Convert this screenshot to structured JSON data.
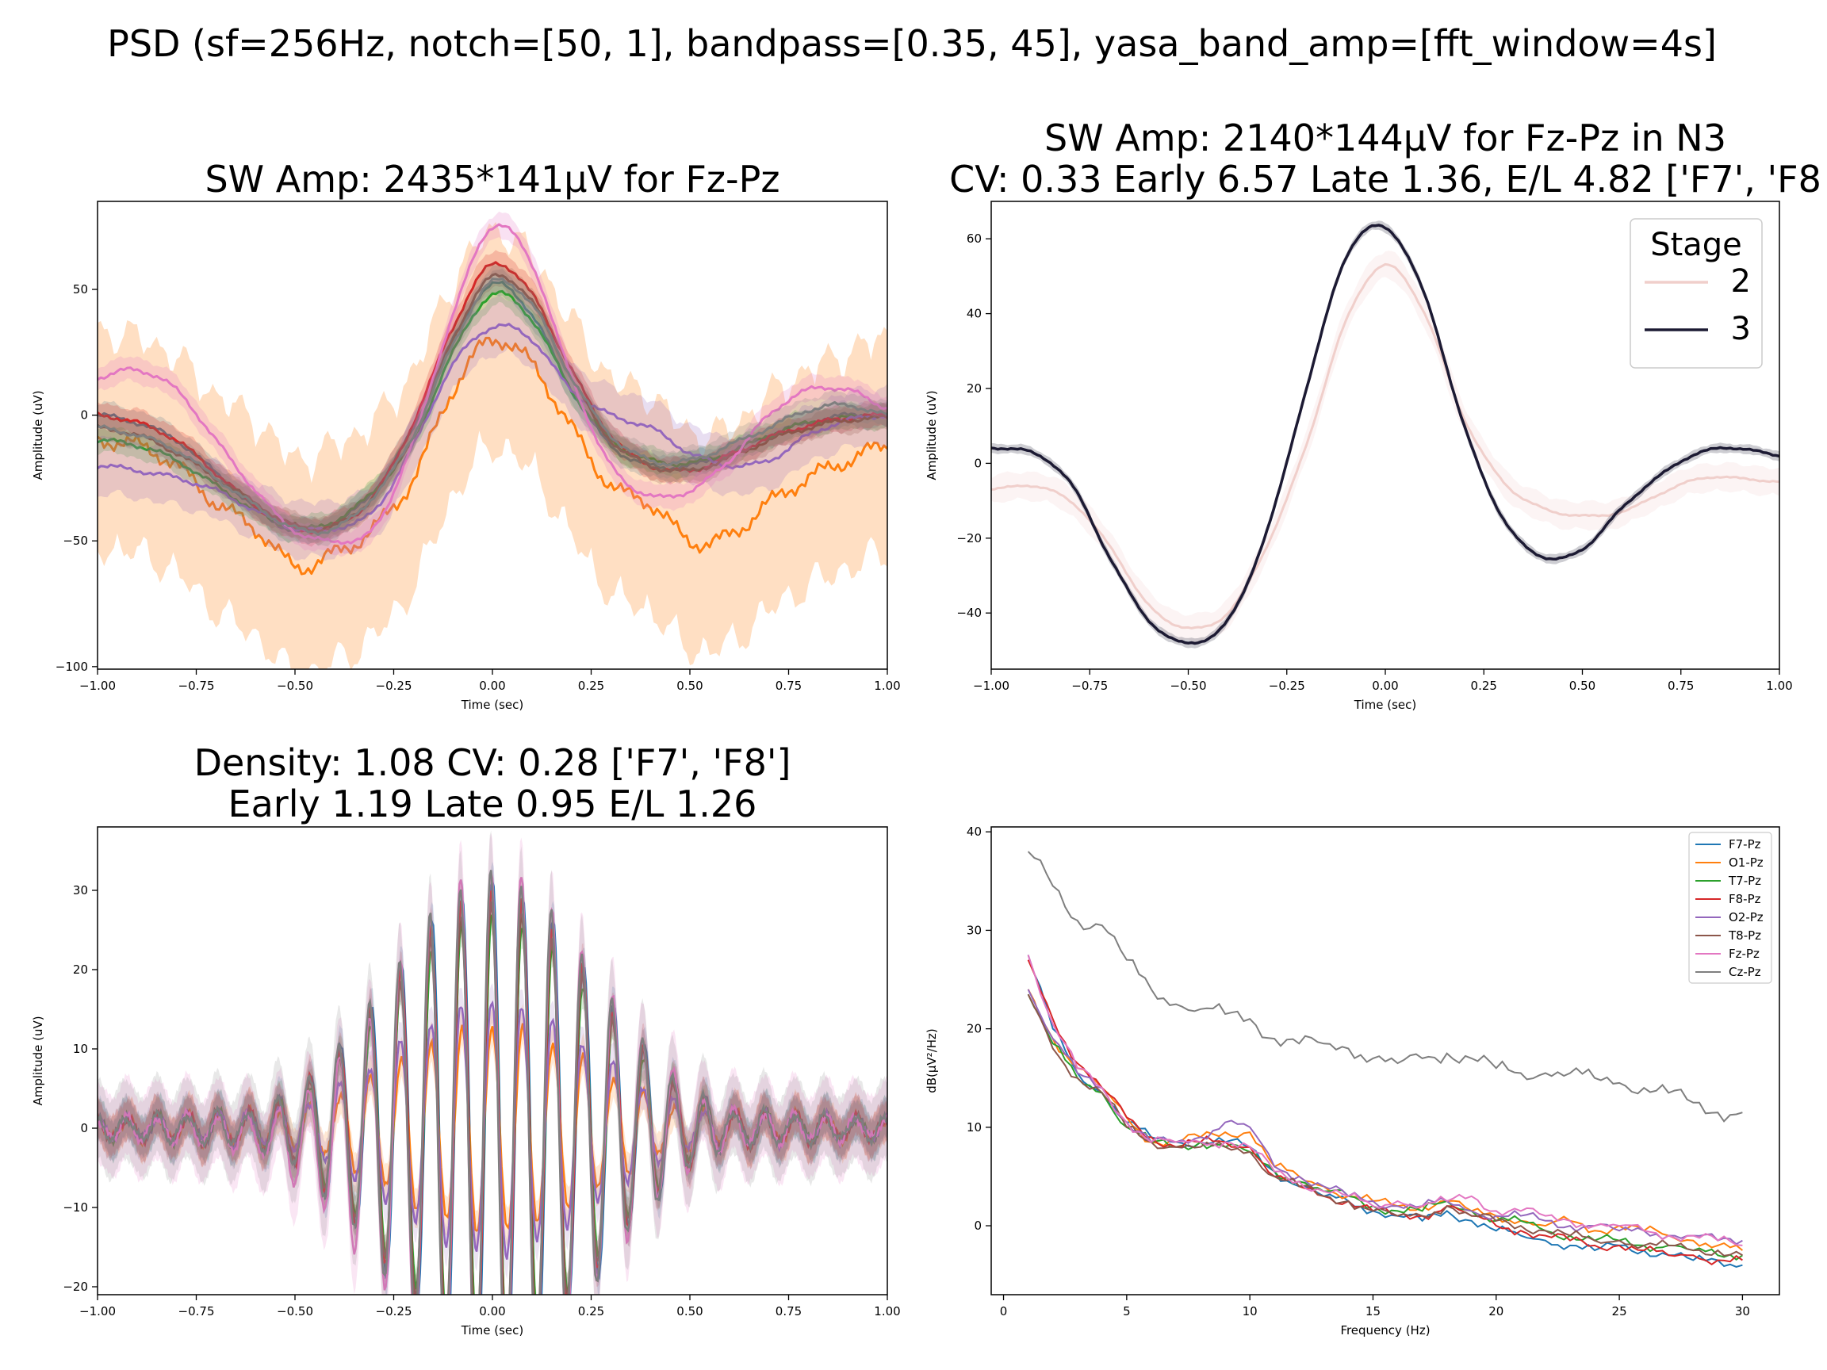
{
  "figure": {
    "suptitle": "PSD (sf=256Hz, notch=[50, 1], bandpass=[0.35, 45], yasa_band_amp=[fft_window=4s]"
  },
  "chart_data": [
    {
      "id": "sw_all",
      "type": "line",
      "title_lines": [
        "SW Amp: 2435*141µV for Fz-Pz"
      ],
      "xlabel": "Time (sec)",
      "ylabel": "Amplitude (uV)",
      "xlim": [
        -1.0,
        1.0
      ],
      "ylim": [
        -101,
        85
      ],
      "xticks": [
        -1.0,
        -0.75,
        -0.5,
        -0.25,
        0.0,
        0.25,
        0.5,
        0.75,
        1.0
      ],
      "xtick_labels": [
        "−1.00",
        "−0.75",
        "−0.50",
        "−0.25",
        "0.00",
        "0.25",
        "0.50",
        "0.75",
        "1.00"
      ],
      "yticks": [
        -100,
        -50,
        0,
        50
      ],
      "ytick_labels": [
        "−100",
        "−50",
        "0",
        "50"
      ],
      "grid": false,
      "x": [
        -1.0,
        -0.9,
        -0.8,
        -0.7,
        -0.6,
        -0.5,
        -0.4,
        -0.3,
        -0.2,
        -0.1,
        0.0,
        0.1,
        0.2,
        0.3,
        0.4,
        0.5,
        0.6,
        0.7,
        0.8,
        0.9,
        1.0
      ],
      "series": [
        {
          "color": "#1f77b4",
          "band": 4,
          "values": [
            0,
            -3,
            -10,
            -23,
            -37,
            -46,
            -43,
            -30,
            -5,
            30,
            52,
            40,
            10,
            -12,
            -20,
            -20,
            -15,
            -8,
            -3,
            0,
            0
          ]
        },
        {
          "color": "#ff7f0e",
          "band": 35,
          "values": [
            -10,
            -12,
            -20,
            -35,
            -45,
            -60,
            -55,
            -45,
            -25,
            10,
            30,
            20,
            -5,
            -28,
            -35,
            -50,
            -48,
            -35,
            -25,
            -18,
            -12
          ]
        },
        {
          "color": "#2ca02c",
          "band": 4,
          "values": [
            -10,
            -12,
            -18,
            -28,
            -38,
            -45,
            -42,
            -30,
            -10,
            25,
            48,
            38,
            10,
            -10,
            -18,
            -19,
            -15,
            -8,
            -3,
            -1,
            0
          ]
        },
        {
          "color": "#d62728",
          "band": 4,
          "values": [
            0,
            -3,
            -10,
            -23,
            -36,
            -45,
            -44,
            -32,
            -3,
            35,
            60,
            48,
            18,
            -8,
            -20,
            -22,
            -16,
            -9,
            -4,
            -1,
            0
          ]
        },
        {
          "color": "#9467bd",
          "band": 9,
          "values": [
            -20,
            -22,
            -25,
            -30,
            -38,
            -45,
            -45,
            -38,
            -12,
            20,
            35,
            30,
            10,
            0,
            -5,
            -15,
            -20,
            -18,
            -8,
            -2,
            0
          ]
        },
        {
          "color": "#8c564b",
          "band": 4,
          "values": [
            -5,
            -8,
            -15,
            -25,
            -35,
            -44,
            -44,
            -32,
            -8,
            30,
            55,
            45,
            15,
            -10,
            -20,
            -22,
            -17,
            -10,
            -5,
            -2,
            -1
          ]
        },
        {
          "color": "#e377c2",
          "band": 4,
          "values": [
            15,
            18,
            10,
            -10,
            -30,
            -46,
            -50,
            -45,
            -10,
            40,
            75,
            60,
            15,
            -20,
            -32,
            -30,
            -18,
            0,
            10,
            10,
            3
          ]
        },
        {
          "color": "#7f7f7f",
          "band": 4,
          "values": [
            -5,
            -8,
            -14,
            -25,
            -36,
            -45,
            -45,
            -32,
            -8,
            28,
            53,
            44,
            15,
            -8,
            -18,
            -18,
            -12,
            -5,
            2,
            4,
            0
          ]
        }
      ]
    },
    {
      "id": "sw_stage",
      "type": "line",
      "title_lines": [
        "SW Amp: 2140*144µV for Fz-Pz in N3",
        "CV: 0.33 Early 6.57 Late 1.36, E/L 4.82 ['F7', 'F8"
      ],
      "xlabel": "Time (sec)",
      "ylabel": "Amplitude (uV)",
      "xlim": [
        -1.0,
        1.0
      ],
      "ylim": [
        -55,
        70
      ],
      "xticks": [
        -1.0,
        -0.75,
        -0.5,
        -0.25,
        0.0,
        0.25,
        0.5,
        0.75,
        1.0
      ],
      "xtick_labels": [
        "−1.00",
        "−0.75",
        "−0.50",
        "−0.25",
        "0.00",
        "0.25",
        "0.50",
        "0.75",
        "1.00"
      ],
      "yticks": [
        -40,
        -20,
        0,
        20,
        40,
        60
      ],
      "ytick_labels": [
        "−40",
        "−20",
        "0",
        "20",
        "40",
        "60"
      ],
      "grid": false,
      "legend": {
        "title": "Stage",
        "position": "top-right",
        "entries": [
          "2",
          "3"
        ]
      },
      "x": [
        -1.0,
        -0.9,
        -0.8,
        -0.7,
        -0.6,
        -0.5,
        -0.4,
        -0.3,
        -0.2,
        -0.1,
        0.0,
        0.1,
        0.2,
        0.3,
        0.4,
        0.5,
        0.6,
        0.7,
        0.8,
        0.9,
        1.0
      ],
      "series": [
        {
          "name": "2",
          "color": "#f0cfcb",
          "band": 3,
          "values": [
            -7,
            -6,
            -10,
            -22,
            -38,
            -44,
            -40,
            -22,
            5,
            38,
            53,
            40,
            12,
            -5,
            -12,
            -14,
            -13,
            -8,
            -4,
            -4,
            -5
          ]
        },
        {
          "name": "3",
          "color": "#1c1a33",
          "band": 1,
          "values": [
            4,
            3,
            -5,
            -25,
            -42,
            -48,
            -42,
            -18,
            20,
            55,
            63,
            45,
            10,
            -15,
            -25,
            -23,
            -12,
            -3,
            3,
            4,
            2
          ]
        }
      ]
    },
    {
      "id": "spindle",
      "type": "line",
      "title_lines": [
        "Density: 1.08 CV: 0.28 ['F7', 'F8']",
        "Early 1.19 Late 0.95 E/L 1.26"
      ],
      "xlabel": "Time (sec)",
      "ylabel": "Amplitude (uV)",
      "xlim": [
        -1.0,
        1.0
      ],
      "ylim": [
        -21,
        38
      ],
      "xticks": [
        -1.0,
        -0.75,
        -0.5,
        -0.25,
        0.0,
        0.25,
        0.5,
        0.75,
        1.0
      ],
      "xtick_labels": [
        "−1.00",
        "−0.75",
        "−0.50",
        "−0.25",
        "0.00",
        "0.25",
        "0.50",
        "0.75",
        "1.00"
      ],
      "yticks": [
        -20,
        -10,
        0,
        10,
        20,
        30
      ],
      "ytick_labels": [
        "−20",
        "−10",
        "0",
        "10",
        "20",
        "30"
      ],
      "grid": false,
      "oscillation": {
        "frequency_hz": 13,
        "envelope_width_sec": 0.26
      },
      "series": [
        {
          "color": "#1f77b4",
          "peak": 31
        },
        {
          "color": "#ff7f0e",
          "peak": 13
        },
        {
          "color": "#2ca02c",
          "peak": 27
        },
        {
          "color": "#d62728",
          "peak": 30
        },
        {
          "color": "#9467bd",
          "peak": 16
        },
        {
          "color": "#8c564b",
          "peak": 28
        },
        {
          "color": "#e377c2",
          "peak": 33
        },
        {
          "color": "#7f7f7f",
          "peak": 32
        }
      ]
    },
    {
      "id": "psd",
      "type": "line",
      "title_lines": [],
      "xlabel": "Frequency (Hz)",
      "ylabel": "dB(µV²/Hz)",
      "xlim": [
        -0.5,
        31.5
      ],
      "ylim": [
        -7,
        40.5
      ],
      "xticks": [
        0,
        5,
        10,
        15,
        20,
        25,
        30
      ],
      "xtick_labels": [
        "0",
        "5",
        "10",
        "15",
        "20",
        "25",
        "30"
      ],
      "yticks": [
        0,
        10,
        20,
        30,
        40
      ],
      "ytick_labels": [
        "0",
        "10",
        "20",
        "30",
        "40"
      ],
      "grid": false,
      "legend": {
        "position": "top-right"
      },
      "x": [
        1,
        2,
        3,
        4,
        5,
        6,
        7,
        8,
        9,
        10,
        11,
        12,
        13,
        14,
        15,
        16,
        17,
        18,
        19,
        20,
        21,
        22,
        23,
        24,
        25,
        26,
        27,
        28,
        29,
        30
      ],
      "series": [
        {
          "name": "F7-Pz",
          "color": "#1f77b4",
          "values": [
            27.5,
            20,
            15.5,
            13.5,
            10.5,
            9,
            8.5,
            8.5,
            8.5,
            8,
            5.5,
            4,
            3,
            2.5,
            1.5,
            1,
            0.5,
            1.5,
            0.5,
            -0.5,
            -1,
            -1.5,
            -2,
            -2.5,
            -2,
            -2.5,
            -3,
            -3.5,
            -3.5,
            -4
          ]
        },
        {
          "name": "O1-Pz",
          "color": "#ff7f0e",
          "values": [
            24,
            19,
            16,
            14,
            11,
            8.5,
            8.5,
            9,
            9.5,
            9.5,
            6,
            5,
            4,
            3,
            2.5,
            2,
            2,
            2.5,
            1.5,
            1,
            0.5,
            0,
            0.5,
            -0.5,
            0,
            -0.5,
            -1,
            -1.5,
            -2,
            -2.5
          ]
        },
        {
          "name": "T7-Pz",
          "color": "#2ca02c",
          "values": [
            23.5,
            18.5,
            15,
            13.5,
            10,
            8.5,
            8,
            8.5,
            8,
            7.5,
            5.5,
            4.5,
            3.5,
            3,
            2,
            1.5,
            1.5,
            2.5,
            1.5,
            0.5,
            0.5,
            -0.5,
            -1,
            -1.5,
            -1.5,
            -2,
            -2,
            -2.5,
            -3,
            -3
          ]
        },
        {
          "name": "F8-Pz",
          "color": "#d62728",
          "values": [
            27,
            21,
            16.5,
            14,
            11,
            9,
            8,
            8.5,
            8.5,
            8,
            5,
            4,
            3,
            2.5,
            1.5,
            1,
            1,
            2,
            1,
            0,
            -0.5,
            -1,
            -1.5,
            -2,
            -2,
            -2.5,
            -3,
            -3,
            -3.5,
            -3.5
          ]
        },
        {
          "name": "O2-Pz",
          "color": "#9467bd",
          "values": [
            24,
            19,
            15.5,
            14,
            10.5,
            8.5,
            8.5,
            9,
            10.5,
            10,
            6,
            5,
            4,
            3,
            2.5,
            2,
            2,
            2.5,
            1.5,
            1,
            1,
            0.5,
            0,
            0,
            -0.5,
            -0.5,
            -1,
            -1,
            -1.5,
            -1.5
          ]
        },
        {
          "name": "T8-Pz",
          "color": "#8c564b",
          "values": [
            23.5,
            18,
            15,
            13.5,
            10,
            8.5,
            8,
            8,
            8,
            7.5,
            5,
            4,
            3,
            2.5,
            1.5,
            1,
            1,
            2,
            1,
            0.5,
            0,
            -0.5,
            -1,
            -1.5,
            -1.5,
            -2,
            -2,
            -2.5,
            -2.5,
            -3
          ]
        },
        {
          "name": "Fz-Pz",
          "color": "#e377c2",
          "values": [
            27.5,
            20.5,
            16,
            14,
            10.5,
            8.5,
            8.5,
            8.5,
            8.5,
            8,
            5.5,
            4.5,
            3.5,
            3,
            2,
            2.5,
            2,
            2.5,
            3,
            1.5,
            1.5,
            1,
            0.5,
            0,
            0,
            -0.5,
            -1,
            -1,
            -1.5,
            -2
          ]
        },
        {
          "name": "Cz-Pz",
          "color": "#7f7f7f",
          "values": [
            38,
            34.5,
            31,
            30.5,
            27,
            24,
            22.5,
            22,
            21.5,
            21,
            19,
            18.5,
            18.5,
            18,
            17,
            16.5,
            17,
            17.5,
            17,
            16,
            15.5,
            15.5,
            15.5,
            15,
            14.5,
            14,
            13.5,
            12.5,
            11.5,
            11.5
          ]
        }
      ]
    }
  ]
}
